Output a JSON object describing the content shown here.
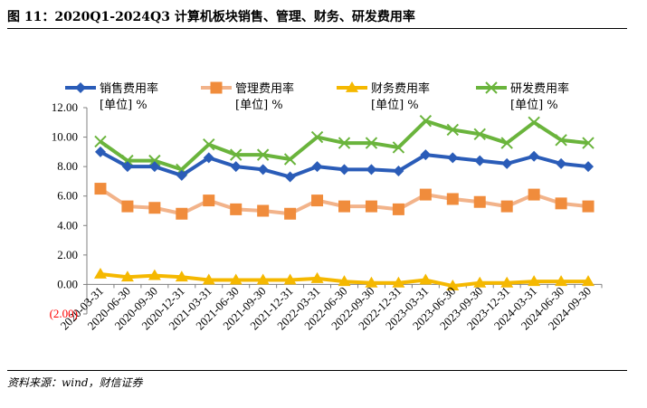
{
  "figure_title": "图 11：2020Q1-2024Q3 计算机板块销售、管理、财务、研发费用率",
  "source_note": "资料来源：wind，财信证券",
  "chart_data": {
    "type": "line",
    "title": "",
    "xlabel": "",
    "ylabel": "",
    "ylim": [
      -2,
      12
    ],
    "yticks": [
      -2,
      0,
      2,
      4,
      6,
      8,
      10,
      12
    ],
    "ytick_labels": [
      "(2.00)",
      "0.00",
      "2.00",
      "4.00",
      "6.00",
      "8.00",
      "10.00",
      "12.00"
    ],
    "negative_tick_color": "#ff0000",
    "grid": false,
    "legend_position": "top",
    "categories": [
      "2020-03-31",
      "2020-06-30",
      "2020-09-30",
      "2020-12-31",
      "2021-03-31",
      "2021-06-30",
      "2021-09-30",
      "2021-12-31",
      "2022-03-31",
      "2022-06-30",
      "2022-09-30",
      "2022-12-31",
      "2023-03-31",
      "2023-06-30",
      "2023-09-30",
      "2023-12-31",
      "2024-03-31",
      "2024-06-30",
      "2024-09-30"
    ],
    "series": [
      {
        "name": "销售费用率",
        "unit_label": "[单位] %",
        "color": "#2a5cb8",
        "marker": "diamond",
        "values": [
          9.0,
          8.0,
          8.0,
          7.4,
          8.6,
          8.0,
          7.8,
          7.3,
          8.0,
          7.8,
          7.8,
          7.7,
          8.8,
          8.6,
          8.4,
          8.2,
          8.7,
          8.2,
          8.0
        ]
      },
      {
        "name": "管理费用率",
        "unit_label": "[单位] %",
        "color": "#f08c3c",
        "line_color": "#f2b38a",
        "marker": "square",
        "values": [
          6.5,
          5.3,
          5.2,
          4.8,
          5.7,
          5.1,
          5.0,
          4.8,
          5.7,
          5.3,
          5.3,
          5.1,
          6.1,
          5.8,
          5.6,
          5.3,
          6.1,
          5.5,
          5.3
        ]
      },
      {
        "name": "财务费用率",
        "unit_label": "[单位] %",
        "color": "#f5b800",
        "marker": "triangle",
        "values": [
          0.7,
          0.5,
          0.6,
          0.5,
          0.3,
          0.3,
          0.3,
          0.3,
          0.4,
          0.2,
          0.1,
          0.1,
          0.3,
          -0.1,
          0.1,
          0.1,
          0.2,
          0.2,
          0.2
        ]
      },
      {
        "name": "研发费用率",
        "unit_label": "[单位] %",
        "color": "#6ab43c",
        "marker": "x",
        "values": [
          9.7,
          8.4,
          8.4,
          7.8,
          9.5,
          8.8,
          8.8,
          8.5,
          10.0,
          9.6,
          9.6,
          9.3,
          11.1,
          10.5,
          10.2,
          9.6,
          11.0,
          9.8,
          9.6
        ]
      }
    ]
  }
}
